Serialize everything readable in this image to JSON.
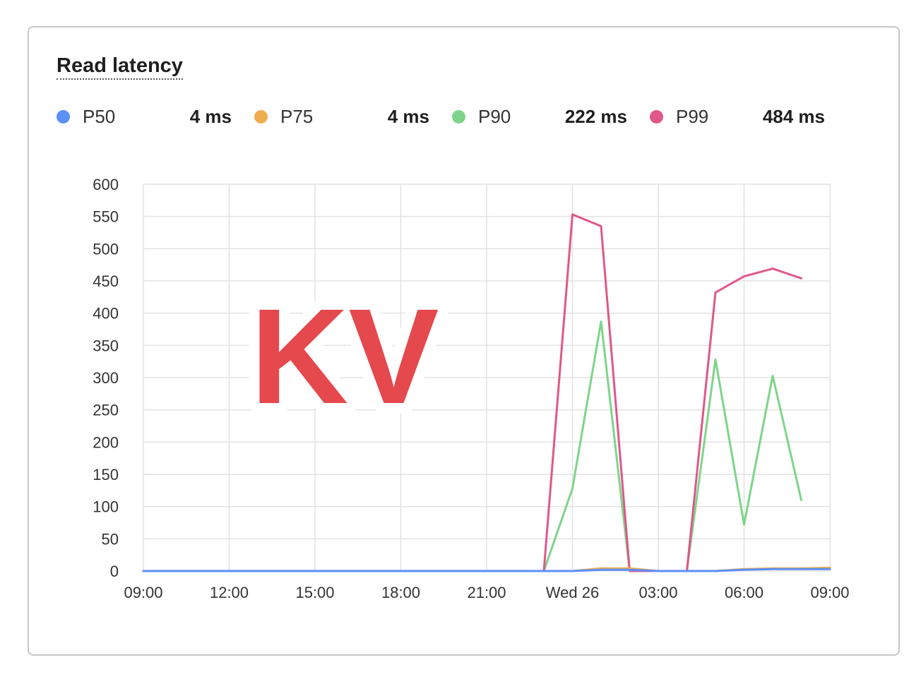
{
  "card": {
    "title": "Read latency"
  },
  "legend": [
    {
      "name": "P50",
      "value": "4 ms",
      "color": "#5b8ff9"
    },
    {
      "name": "P75",
      "value": "4 ms",
      "color": "#f0ad4e"
    },
    {
      "name": "P90",
      "value": "222 ms",
      "color": "#7ed48a"
    },
    {
      "name": "P99",
      "value": "484 ms",
      "color": "#e0578a"
    }
  ],
  "watermark": {
    "text": "KV"
  },
  "chart_data": {
    "type": "line",
    "title": "",
    "xlabel": "",
    "ylabel": "",
    "ylim": [
      0,
      600
    ],
    "yticks": [
      0,
      50,
      100,
      150,
      200,
      250,
      300,
      350,
      400,
      450,
      500,
      550,
      600
    ],
    "xlim": [
      "09:00",
      "09:00 (+1 day)"
    ],
    "xticks": [
      "09:00",
      "12:00",
      "15:00",
      "18:00",
      "21:00",
      "Wed 26",
      "03:00",
      "06:00",
      "09:00"
    ],
    "x": [
      "09:00",
      "10:00",
      "11:00",
      "12:00",
      "13:00",
      "14:00",
      "15:00",
      "16:00",
      "17:00",
      "18:00",
      "19:00",
      "20:00",
      "21:00",
      "22:00",
      "23:00",
      "00:00",
      "01:00",
      "02:00",
      "03:00",
      "04:00",
      "05:00",
      "06:00",
      "07:00",
      "08:00",
      "09:00"
    ],
    "series": [
      {
        "name": "P50",
        "color": "#5b8ff9",
        "values": [
          0,
          0,
          0,
          0,
          0,
          0,
          0,
          0,
          0,
          0,
          0,
          0,
          0,
          0,
          0,
          0,
          2,
          2,
          0,
          0,
          0,
          2,
          3,
          3,
          3
        ]
      },
      {
        "name": "P75",
        "color": "#f0ad4e",
        "values": [
          0,
          0,
          0,
          0,
          0,
          0,
          0,
          0,
          0,
          0,
          0,
          0,
          0,
          0,
          0,
          0,
          4,
          4,
          0,
          0,
          0,
          3,
          4,
          4,
          5
        ]
      },
      {
        "name": "P90",
        "color": "#7ed48a",
        "values": [
          0,
          0,
          0,
          0,
          0,
          0,
          0,
          0,
          0,
          0,
          0,
          0,
          0,
          0,
          0,
          128,
          387,
          0,
          0,
          0,
          328,
          72,
          303,
          110,
          null
        ]
      },
      {
        "name": "P99",
        "color": "#e0578a",
        "values": [
          0,
          0,
          0,
          0,
          0,
          0,
          0,
          0,
          0,
          0,
          0,
          0,
          0,
          0,
          0,
          553,
          535,
          0,
          0,
          0,
          432,
          457,
          469,
          454,
          null
        ]
      }
    ],
    "grid": true,
    "legend_position": "top"
  }
}
